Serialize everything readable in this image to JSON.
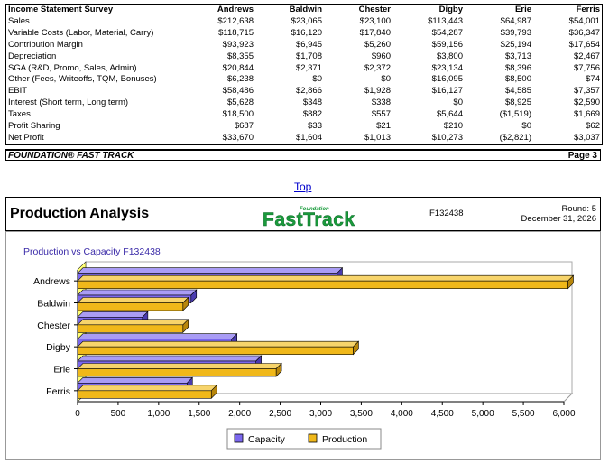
{
  "income": {
    "header_label": "Income Statement Survey",
    "companies": [
      "Andrews",
      "Baldwin",
      "Chester",
      "Digby",
      "Erie",
      "Ferris"
    ],
    "rows": [
      {
        "label": "Sales",
        "values": [
          "$212,638",
          "$23,065",
          "$23,100",
          "$113,443",
          "$64,987",
          "$54,001"
        ]
      },
      {
        "label": "Variable Costs (Labor, Material, Carry)",
        "values": [
          "$118,715",
          "$16,120",
          "$17,840",
          "$54,287",
          "$39,793",
          "$36,347"
        ]
      },
      {
        "label": "Contribution Margin",
        "values": [
          "$93,923",
          "$6,945",
          "$5,260",
          "$59,156",
          "$25,194",
          "$17,654"
        ]
      },
      {
        "label": "Depreciation",
        "values": [
          "$8,355",
          "$1,708",
          "$960",
          "$3,800",
          "$3,713",
          "$2,467"
        ]
      },
      {
        "label": "SGA (R&D, Promo, Sales, Admin)",
        "values": [
          "$20,844",
          "$2,371",
          "$2,372",
          "$23,134",
          "$8,396",
          "$7,756"
        ]
      },
      {
        "label": "Other (Fees, Writeoffs, TQM, Bonuses)",
        "values": [
          "$6,238",
          "$0",
          "$0",
          "$16,095",
          "$8,500",
          "$74"
        ]
      },
      {
        "label": "EBIT",
        "values": [
          "$58,486",
          "$2,866",
          "$1,928",
          "$16,127",
          "$4,585",
          "$7,357"
        ]
      },
      {
        "label": "Interest (Short term, Long term)",
        "values": [
          "$5,628",
          "$348",
          "$338",
          "$0",
          "$8,925",
          "$2,590"
        ]
      },
      {
        "label": "Taxes",
        "values": [
          "$18,500",
          "$882",
          "$557",
          "$5,644",
          "($1,519)",
          "$1,669"
        ]
      },
      {
        "label": "Profit Sharing",
        "values": [
          "$687",
          "$33",
          "$21",
          "$210",
          "$0",
          "$62"
        ]
      },
      {
        "label": "Net Profit",
        "values": [
          "$33,670",
          "$1,604",
          "$1,013",
          "$10,273",
          "($2,821)",
          "$3,037"
        ]
      }
    ]
  },
  "footer": {
    "left": "FOUNDATION® FAST TRACK",
    "right": "Page 3"
  },
  "top_link": "Top",
  "production": {
    "title": "Production Analysis",
    "logo_small": "Foundation",
    "logo_main": "FastTrack",
    "code": "F132438",
    "round": "Round: 5",
    "date": "December 31, 2026"
  },
  "colors": {
    "capacity": "#7b68ee",
    "production": "#f0b81a",
    "logo": "#1a9b3c"
  },
  "chart_data": {
    "type": "bar",
    "orientation": "horizontal",
    "title": "Production vs Capacity F132438",
    "categories": [
      "Andrews",
      "Baldwin",
      "Chester",
      "Digby",
      "Erie",
      "Ferris"
    ],
    "series": [
      {
        "name": "Capacity",
        "values": [
          3200,
          1400,
          800,
          1900,
          2200,
          1350
        ]
      },
      {
        "name": "Production",
        "values": [
          6050,
          1300,
          1300,
          3400,
          2450,
          1650
        ]
      }
    ],
    "xlim": [
      0,
      6000
    ],
    "xticks": [
      "0",
      "500",
      "1,000",
      "1,500",
      "2,000",
      "2,500",
      "3,000",
      "3,500",
      "4,000",
      "4,500",
      "5,000",
      "5,500",
      "6,000"
    ],
    "legend_position": "bottom"
  }
}
